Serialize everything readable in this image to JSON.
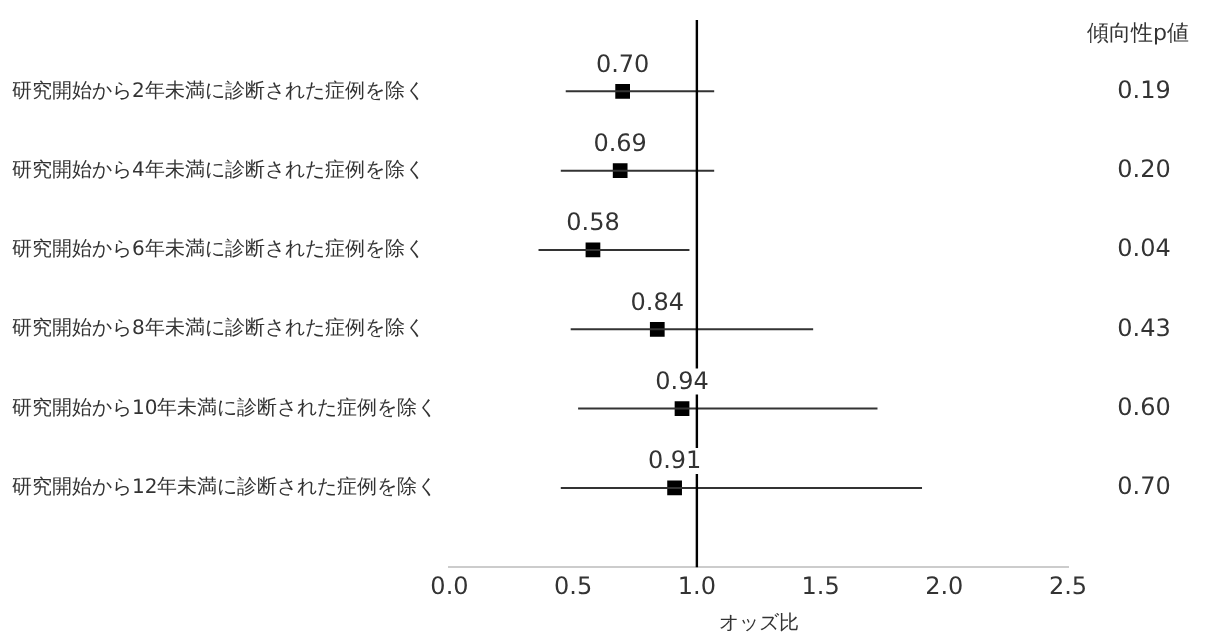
{
  "chart_data": {
    "type": "scatter",
    "orientation": "horizontal",
    "categories": [
      "研究開始から2年未満に診断された症例を除く",
      "研究開始から4年未満に診断された症例を除く",
      "研究開始から6年未満に診断された症例を除く",
      "研究開始から8年未満に診断された症例を除く",
      "研究開始から10年未満に診断された症例を除く",
      "研究開始から12年未満に診断された症例を除く"
    ],
    "series": [
      {
        "color": "#000000",
        "values": [
          0.7,
          0.69,
          0.58,
          0.84,
          0.94,
          0.91
        ],
        "errors": [
          [
            0.47,
            1.07
          ],
          [
            0.45,
            1.07
          ],
          [
            0.36,
            0.97
          ],
          [
            0.49,
            1.47
          ],
          [
            0.52,
            1.73
          ],
          [
            0.45,
            1.91
          ]
        ],
        "value_labels": [
          "0.70",
          "0.69",
          "0.58",
          "0.84",
          "0.94",
          "0.91"
        ]
      }
    ],
    "xlim": [
      0,
      2.5
    ],
    "xticks": [
      {
        "value": 0,
        "label": "0.0"
      },
      {
        "value": 0.5,
        "label": "0.5"
      },
      {
        "value": 1,
        "label": "1.0"
      },
      {
        "value": 1.5,
        "label": "1.5"
      },
      {
        "value": 2,
        "label": "2.0"
      },
      {
        "value": 2.5,
        "label": "2.5"
      }
    ],
    "xlabel": "オッズ比",
    "ref_lines": [
      {
        "axis": "x",
        "value": 1,
        "color": "#000000"
      }
    ],
    "marker": "square",
    "legend": false,
    "grid": false,
    "annotations": [
      "傾向性p値",
      "0.19",
      "0.20",
      "0.04",
      "0.43",
      "0.60",
      "0.70"
    ]
  }
}
